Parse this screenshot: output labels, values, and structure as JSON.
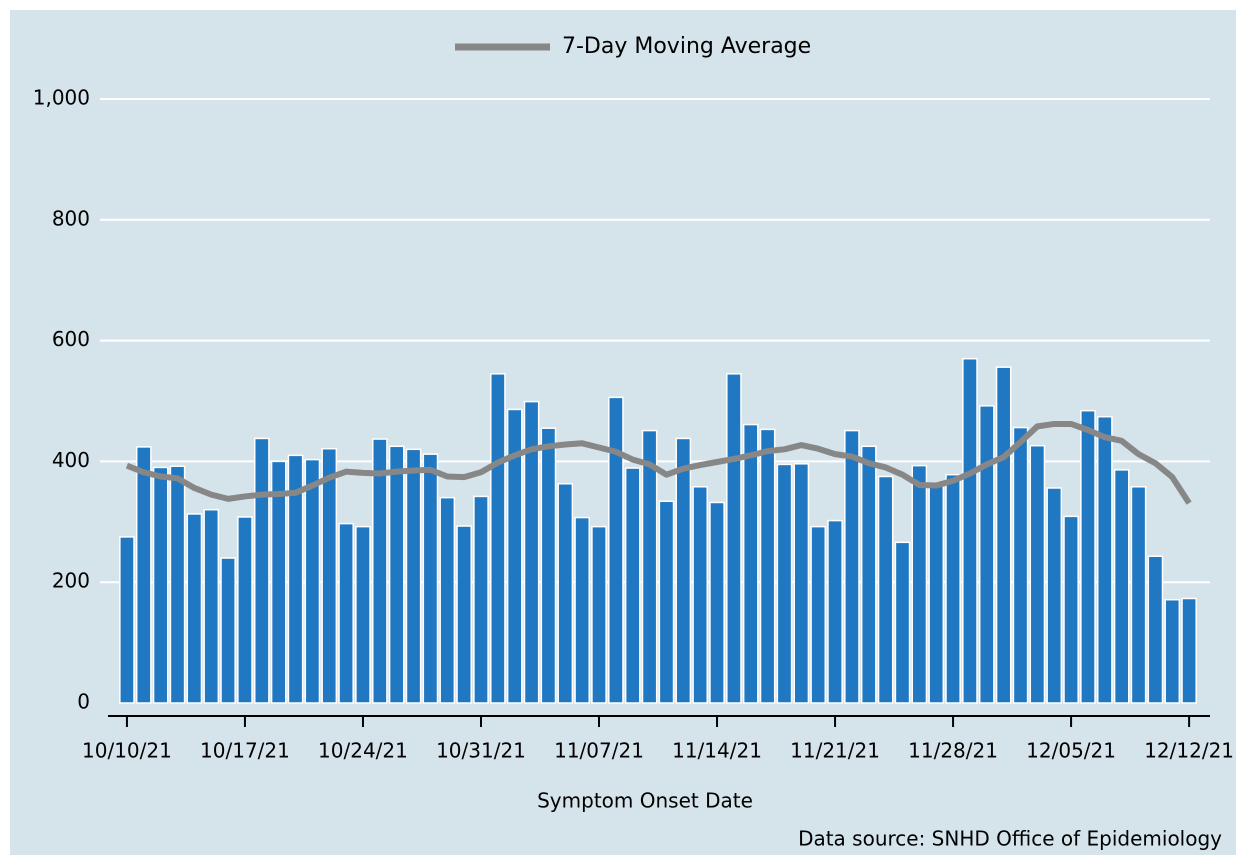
{
  "chart_data": {
    "type": "bar",
    "legend": "top",
    "grid": true,
    "x_label": "Symptom Onset Date",
    "source": "Data source: SNHD Office of Epidemiology",
    "categories": [
      "10/10/21",
      null,
      null,
      null,
      null,
      null,
      null,
      "10/17/21",
      null,
      null,
      null,
      null,
      null,
      null,
      "10/24/21",
      null,
      null,
      null,
      null,
      null,
      null,
      "10/31/21",
      null,
      null,
      null,
      null,
      null,
      null,
      "11/07/21",
      null,
      null,
      null,
      null,
      null,
      null,
      "11/14/21",
      null,
      null,
      null,
      null,
      null,
      null,
      "11/21/21",
      null,
      null,
      null,
      null,
      null,
      null,
      "11/28/21",
      null,
      null,
      null,
      null,
      null,
      null,
      "12/05/21",
      null,
      null,
      null,
      null,
      null,
      null,
      "12/12/21"
    ],
    "ylim": [
      0,
      1000
    ],
    "yticks": [
      0,
      200,
      400,
      600,
      800,
      {
        "value": 1000,
        "label": "1,000"
      }
    ],
    "series": [
      {
        "type": "bar",
        "color": "#1f78c1",
        "values": [
          275,
          424,
          390,
          392,
          313,
          320,
          240,
          308,
          438,
          400,
          410,
          403,
          421,
          297,
          292,
          437,
          425,
          420,
          412,
          340,
          293,
          342,
          545,
          486,
          499,
          455,
          363,
          307,
          292,
          506,
          389,
          451,
          334,
          438,
          358,
          332,
          545,
          461,
          453,
          395,
          396,
          292,
          302,
          451,
          425,
          375,
          266,
          393,
          360,
          378,
          570,
          492,
          556,
          456,
          426,
          356,
          309,
          484,
          474,
          386,
          358,
          243,
          171,
          173
        ]
      },
      {
        "type": "line",
        "name": "7-Day Moving Average",
        "color": "#878787",
        "values": [
          393,
          382,
          375,
          372,
          356,
          345,
          338,
          342,
          345,
          346,
          348,
          360,
          373,
          383,
          381,
          380,
          383,
          385,
          386,
          375,
          374,
          382,
          398,
          410,
          420,
          425,
          428,
          430,
          423,
          416,
          403,
          395,
          378,
          388,
          394,
          399,
          404,
          410,
          417,
          420,
          427,
          421,
          412,
          408,
          397,
          390,
          378,
          361,
          360,
          368,
          380,
          395,
          407,
          432,
          458,
          462,
          462,
          452,
          440,
          434,
          412,
          397,
          374,
          331
        ]
      }
    ]
  }
}
